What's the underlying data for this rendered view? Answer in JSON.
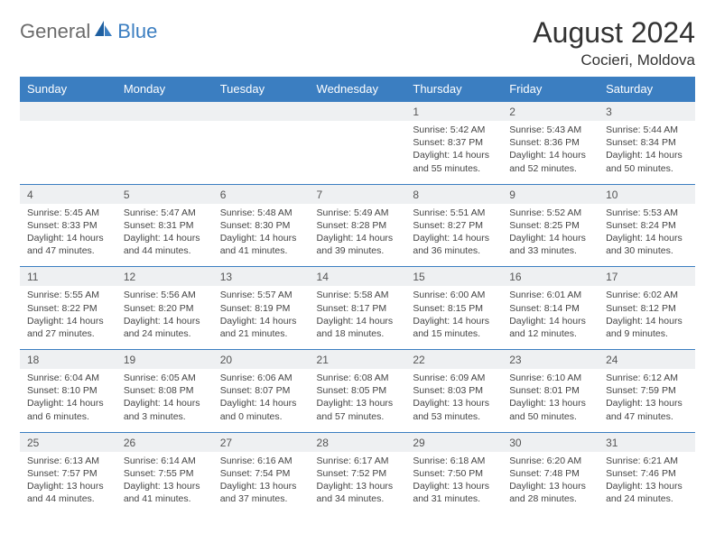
{
  "brand": {
    "part1": "General",
    "part2": "Blue"
  },
  "title": "August 2024",
  "location": "Cocieri, Moldova",
  "colors": {
    "header_bg": "#3b7ec1",
    "header_text": "#ffffff",
    "daynum_bg": "#eef0f2",
    "border": "#3b7ec1",
    "text": "#444444",
    "background": "#ffffff"
  },
  "typography": {
    "title_fontsize": 32,
    "location_fontsize": 17,
    "dow_fontsize": 13,
    "daynum_fontsize": 12,
    "cell_fontsize": 10.5
  },
  "day_names": [
    "Sunday",
    "Monday",
    "Tuesday",
    "Wednesday",
    "Thursday",
    "Friday",
    "Saturday"
  ],
  "weeks": [
    {
      "nums": [
        "",
        "",
        "",
        "",
        "1",
        "2",
        "3"
      ],
      "cells": [
        null,
        null,
        null,
        null,
        {
          "sunrise": "Sunrise: 5:42 AM",
          "sunset": "Sunset: 8:37 PM",
          "day1": "Daylight: 14 hours",
          "day2": "and 55 minutes."
        },
        {
          "sunrise": "Sunrise: 5:43 AM",
          "sunset": "Sunset: 8:36 PM",
          "day1": "Daylight: 14 hours",
          "day2": "and 52 minutes."
        },
        {
          "sunrise": "Sunrise: 5:44 AM",
          "sunset": "Sunset: 8:34 PM",
          "day1": "Daylight: 14 hours",
          "day2": "and 50 minutes."
        }
      ]
    },
    {
      "nums": [
        "4",
        "5",
        "6",
        "7",
        "8",
        "9",
        "10"
      ],
      "cells": [
        {
          "sunrise": "Sunrise: 5:45 AM",
          "sunset": "Sunset: 8:33 PM",
          "day1": "Daylight: 14 hours",
          "day2": "and 47 minutes."
        },
        {
          "sunrise": "Sunrise: 5:47 AM",
          "sunset": "Sunset: 8:31 PM",
          "day1": "Daylight: 14 hours",
          "day2": "and 44 minutes."
        },
        {
          "sunrise": "Sunrise: 5:48 AM",
          "sunset": "Sunset: 8:30 PM",
          "day1": "Daylight: 14 hours",
          "day2": "and 41 minutes."
        },
        {
          "sunrise": "Sunrise: 5:49 AM",
          "sunset": "Sunset: 8:28 PM",
          "day1": "Daylight: 14 hours",
          "day2": "and 39 minutes."
        },
        {
          "sunrise": "Sunrise: 5:51 AM",
          "sunset": "Sunset: 8:27 PM",
          "day1": "Daylight: 14 hours",
          "day2": "and 36 minutes."
        },
        {
          "sunrise": "Sunrise: 5:52 AM",
          "sunset": "Sunset: 8:25 PM",
          "day1": "Daylight: 14 hours",
          "day2": "and 33 minutes."
        },
        {
          "sunrise": "Sunrise: 5:53 AM",
          "sunset": "Sunset: 8:24 PM",
          "day1": "Daylight: 14 hours",
          "day2": "and 30 minutes."
        }
      ]
    },
    {
      "nums": [
        "11",
        "12",
        "13",
        "14",
        "15",
        "16",
        "17"
      ],
      "cells": [
        {
          "sunrise": "Sunrise: 5:55 AM",
          "sunset": "Sunset: 8:22 PM",
          "day1": "Daylight: 14 hours",
          "day2": "and 27 minutes."
        },
        {
          "sunrise": "Sunrise: 5:56 AM",
          "sunset": "Sunset: 8:20 PM",
          "day1": "Daylight: 14 hours",
          "day2": "and 24 minutes."
        },
        {
          "sunrise": "Sunrise: 5:57 AM",
          "sunset": "Sunset: 8:19 PM",
          "day1": "Daylight: 14 hours",
          "day2": "and 21 minutes."
        },
        {
          "sunrise": "Sunrise: 5:58 AM",
          "sunset": "Sunset: 8:17 PM",
          "day1": "Daylight: 14 hours",
          "day2": "and 18 minutes."
        },
        {
          "sunrise": "Sunrise: 6:00 AM",
          "sunset": "Sunset: 8:15 PM",
          "day1": "Daylight: 14 hours",
          "day2": "and 15 minutes."
        },
        {
          "sunrise": "Sunrise: 6:01 AM",
          "sunset": "Sunset: 8:14 PM",
          "day1": "Daylight: 14 hours",
          "day2": "and 12 minutes."
        },
        {
          "sunrise": "Sunrise: 6:02 AM",
          "sunset": "Sunset: 8:12 PM",
          "day1": "Daylight: 14 hours",
          "day2": "and 9 minutes."
        }
      ]
    },
    {
      "nums": [
        "18",
        "19",
        "20",
        "21",
        "22",
        "23",
        "24"
      ],
      "cells": [
        {
          "sunrise": "Sunrise: 6:04 AM",
          "sunset": "Sunset: 8:10 PM",
          "day1": "Daylight: 14 hours",
          "day2": "and 6 minutes."
        },
        {
          "sunrise": "Sunrise: 6:05 AM",
          "sunset": "Sunset: 8:08 PM",
          "day1": "Daylight: 14 hours",
          "day2": "and 3 minutes."
        },
        {
          "sunrise": "Sunrise: 6:06 AM",
          "sunset": "Sunset: 8:07 PM",
          "day1": "Daylight: 14 hours",
          "day2": "and 0 minutes."
        },
        {
          "sunrise": "Sunrise: 6:08 AM",
          "sunset": "Sunset: 8:05 PM",
          "day1": "Daylight: 13 hours",
          "day2": "and 57 minutes."
        },
        {
          "sunrise": "Sunrise: 6:09 AM",
          "sunset": "Sunset: 8:03 PM",
          "day1": "Daylight: 13 hours",
          "day2": "and 53 minutes."
        },
        {
          "sunrise": "Sunrise: 6:10 AM",
          "sunset": "Sunset: 8:01 PM",
          "day1": "Daylight: 13 hours",
          "day2": "and 50 minutes."
        },
        {
          "sunrise": "Sunrise: 6:12 AM",
          "sunset": "Sunset: 7:59 PM",
          "day1": "Daylight: 13 hours",
          "day2": "and 47 minutes."
        }
      ]
    },
    {
      "nums": [
        "25",
        "26",
        "27",
        "28",
        "29",
        "30",
        "31"
      ],
      "cells": [
        {
          "sunrise": "Sunrise: 6:13 AM",
          "sunset": "Sunset: 7:57 PM",
          "day1": "Daylight: 13 hours",
          "day2": "and 44 minutes."
        },
        {
          "sunrise": "Sunrise: 6:14 AM",
          "sunset": "Sunset: 7:55 PM",
          "day1": "Daylight: 13 hours",
          "day2": "and 41 minutes."
        },
        {
          "sunrise": "Sunrise: 6:16 AM",
          "sunset": "Sunset: 7:54 PM",
          "day1": "Daylight: 13 hours",
          "day2": "and 37 minutes."
        },
        {
          "sunrise": "Sunrise: 6:17 AM",
          "sunset": "Sunset: 7:52 PM",
          "day1": "Daylight: 13 hours",
          "day2": "and 34 minutes."
        },
        {
          "sunrise": "Sunrise: 6:18 AM",
          "sunset": "Sunset: 7:50 PM",
          "day1": "Daylight: 13 hours",
          "day2": "and 31 minutes."
        },
        {
          "sunrise": "Sunrise: 6:20 AM",
          "sunset": "Sunset: 7:48 PM",
          "day1": "Daylight: 13 hours",
          "day2": "and 28 minutes."
        },
        {
          "sunrise": "Sunrise: 6:21 AM",
          "sunset": "Sunset: 7:46 PM",
          "day1": "Daylight: 13 hours",
          "day2": "and 24 minutes."
        }
      ]
    }
  ]
}
